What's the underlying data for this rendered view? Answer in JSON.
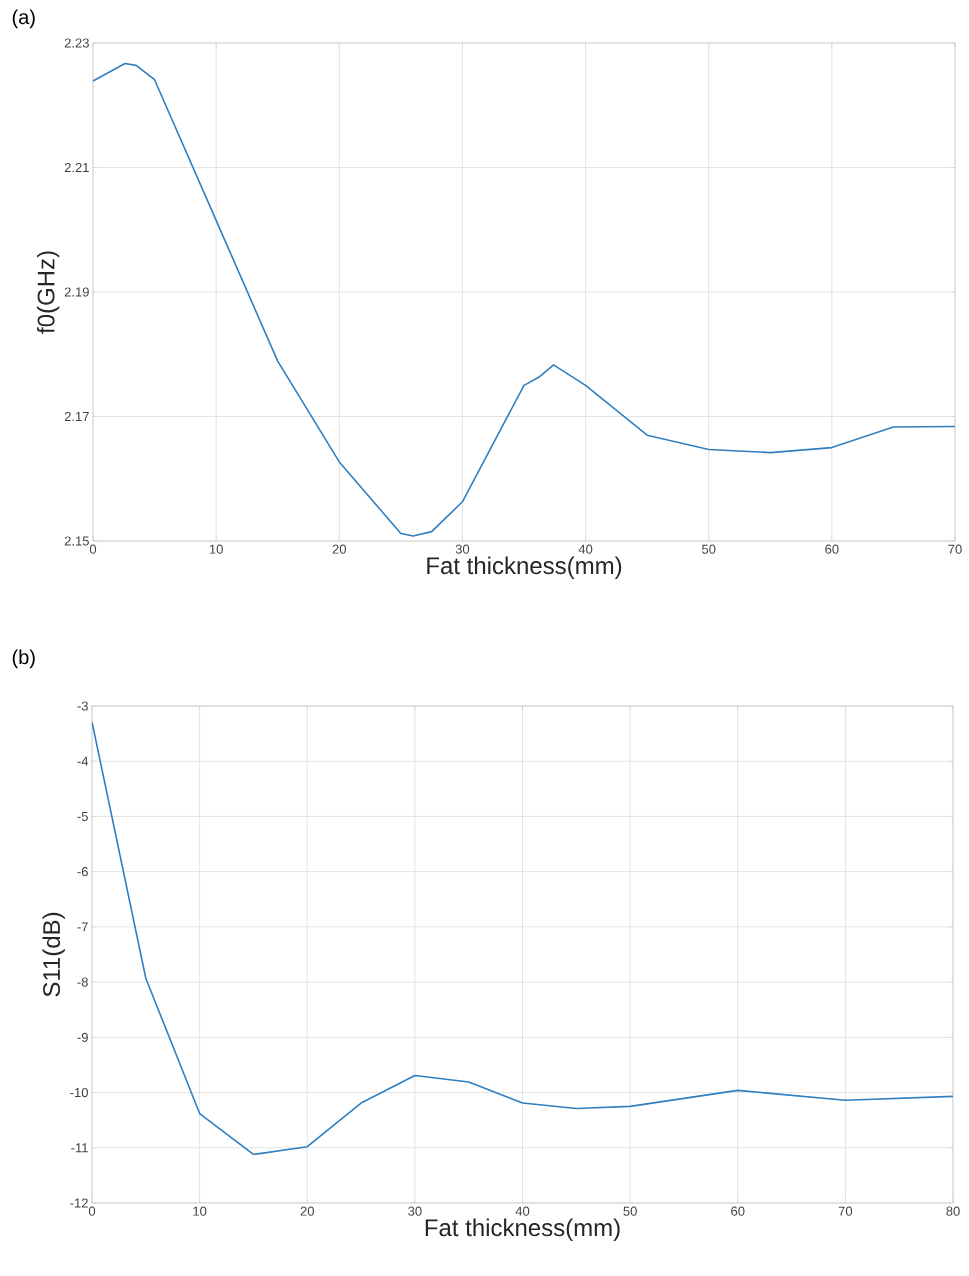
{
  "chart_data": [
    {
      "type": "line",
      "title": "(a)",
      "xlabel": "Fat thickness(mm)",
      "ylabel": "f0(GHz)",
      "grid": true,
      "color": "#2f7fc1",
      "x": [
        0,
        2.6,
        3.5,
        5,
        10,
        15,
        20,
        25,
        26,
        27.5,
        30,
        35,
        36.2,
        37.4,
        40,
        45,
        50,
        55,
        60,
        65,
        70
      ],
      "values": [
        2.2239,
        2.2267,
        2.2264,
        2.2241,
        2.2015,
        2.1789,
        2.1627,
        2.1512,
        2.1508,
        2.1515,
        2.1563,
        2.175,
        2.1763,
        2.1783,
        2.175,
        2.167,
        2.1647,
        2.1642,
        2.165,
        2.1683,
        2.1684
      ],
      "xlim": [
        0,
        70
      ],
      "ylim": [
        2.15,
        2.23
      ],
      "xticks": [
        0,
        10,
        20,
        30,
        40,
        50,
        60,
        70
      ],
      "yticks": [
        2.15,
        2.17,
        2.19,
        2.21,
        2.23
      ]
    },
    {
      "type": "line",
      "title": "(b)",
      "xlabel": "Fat thickness(mm)",
      "ylabel": "S11(dB)",
      "grid": true,
      "color": "#2f7fc1",
      "x": [
        0,
        5,
        10,
        15,
        20,
        25,
        30,
        35,
        40,
        45,
        50,
        60,
        70,
        80
      ],
      "values": [
        -3.29,
        -7.93,
        -10.38,
        -11.12,
        -10.98,
        -10.19,
        -9.69,
        -9.81,
        -10.19,
        -10.29,
        -10.25,
        -9.96,
        -10.14,
        -10.07
      ],
      "xlim": [
        0,
        80
      ],
      "ylim": [
        -12,
        -3
      ],
      "xticks": [
        0,
        10,
        20,
        30,
        40,
        50,
        60,
        70,
        80
      ],
      "yticks": [
        -12,
        -11,
        -10,
        -9,
        -8,
        -7,
        -6,
        -5,
        -4,
        -3
      ]
    }
  ]
}
